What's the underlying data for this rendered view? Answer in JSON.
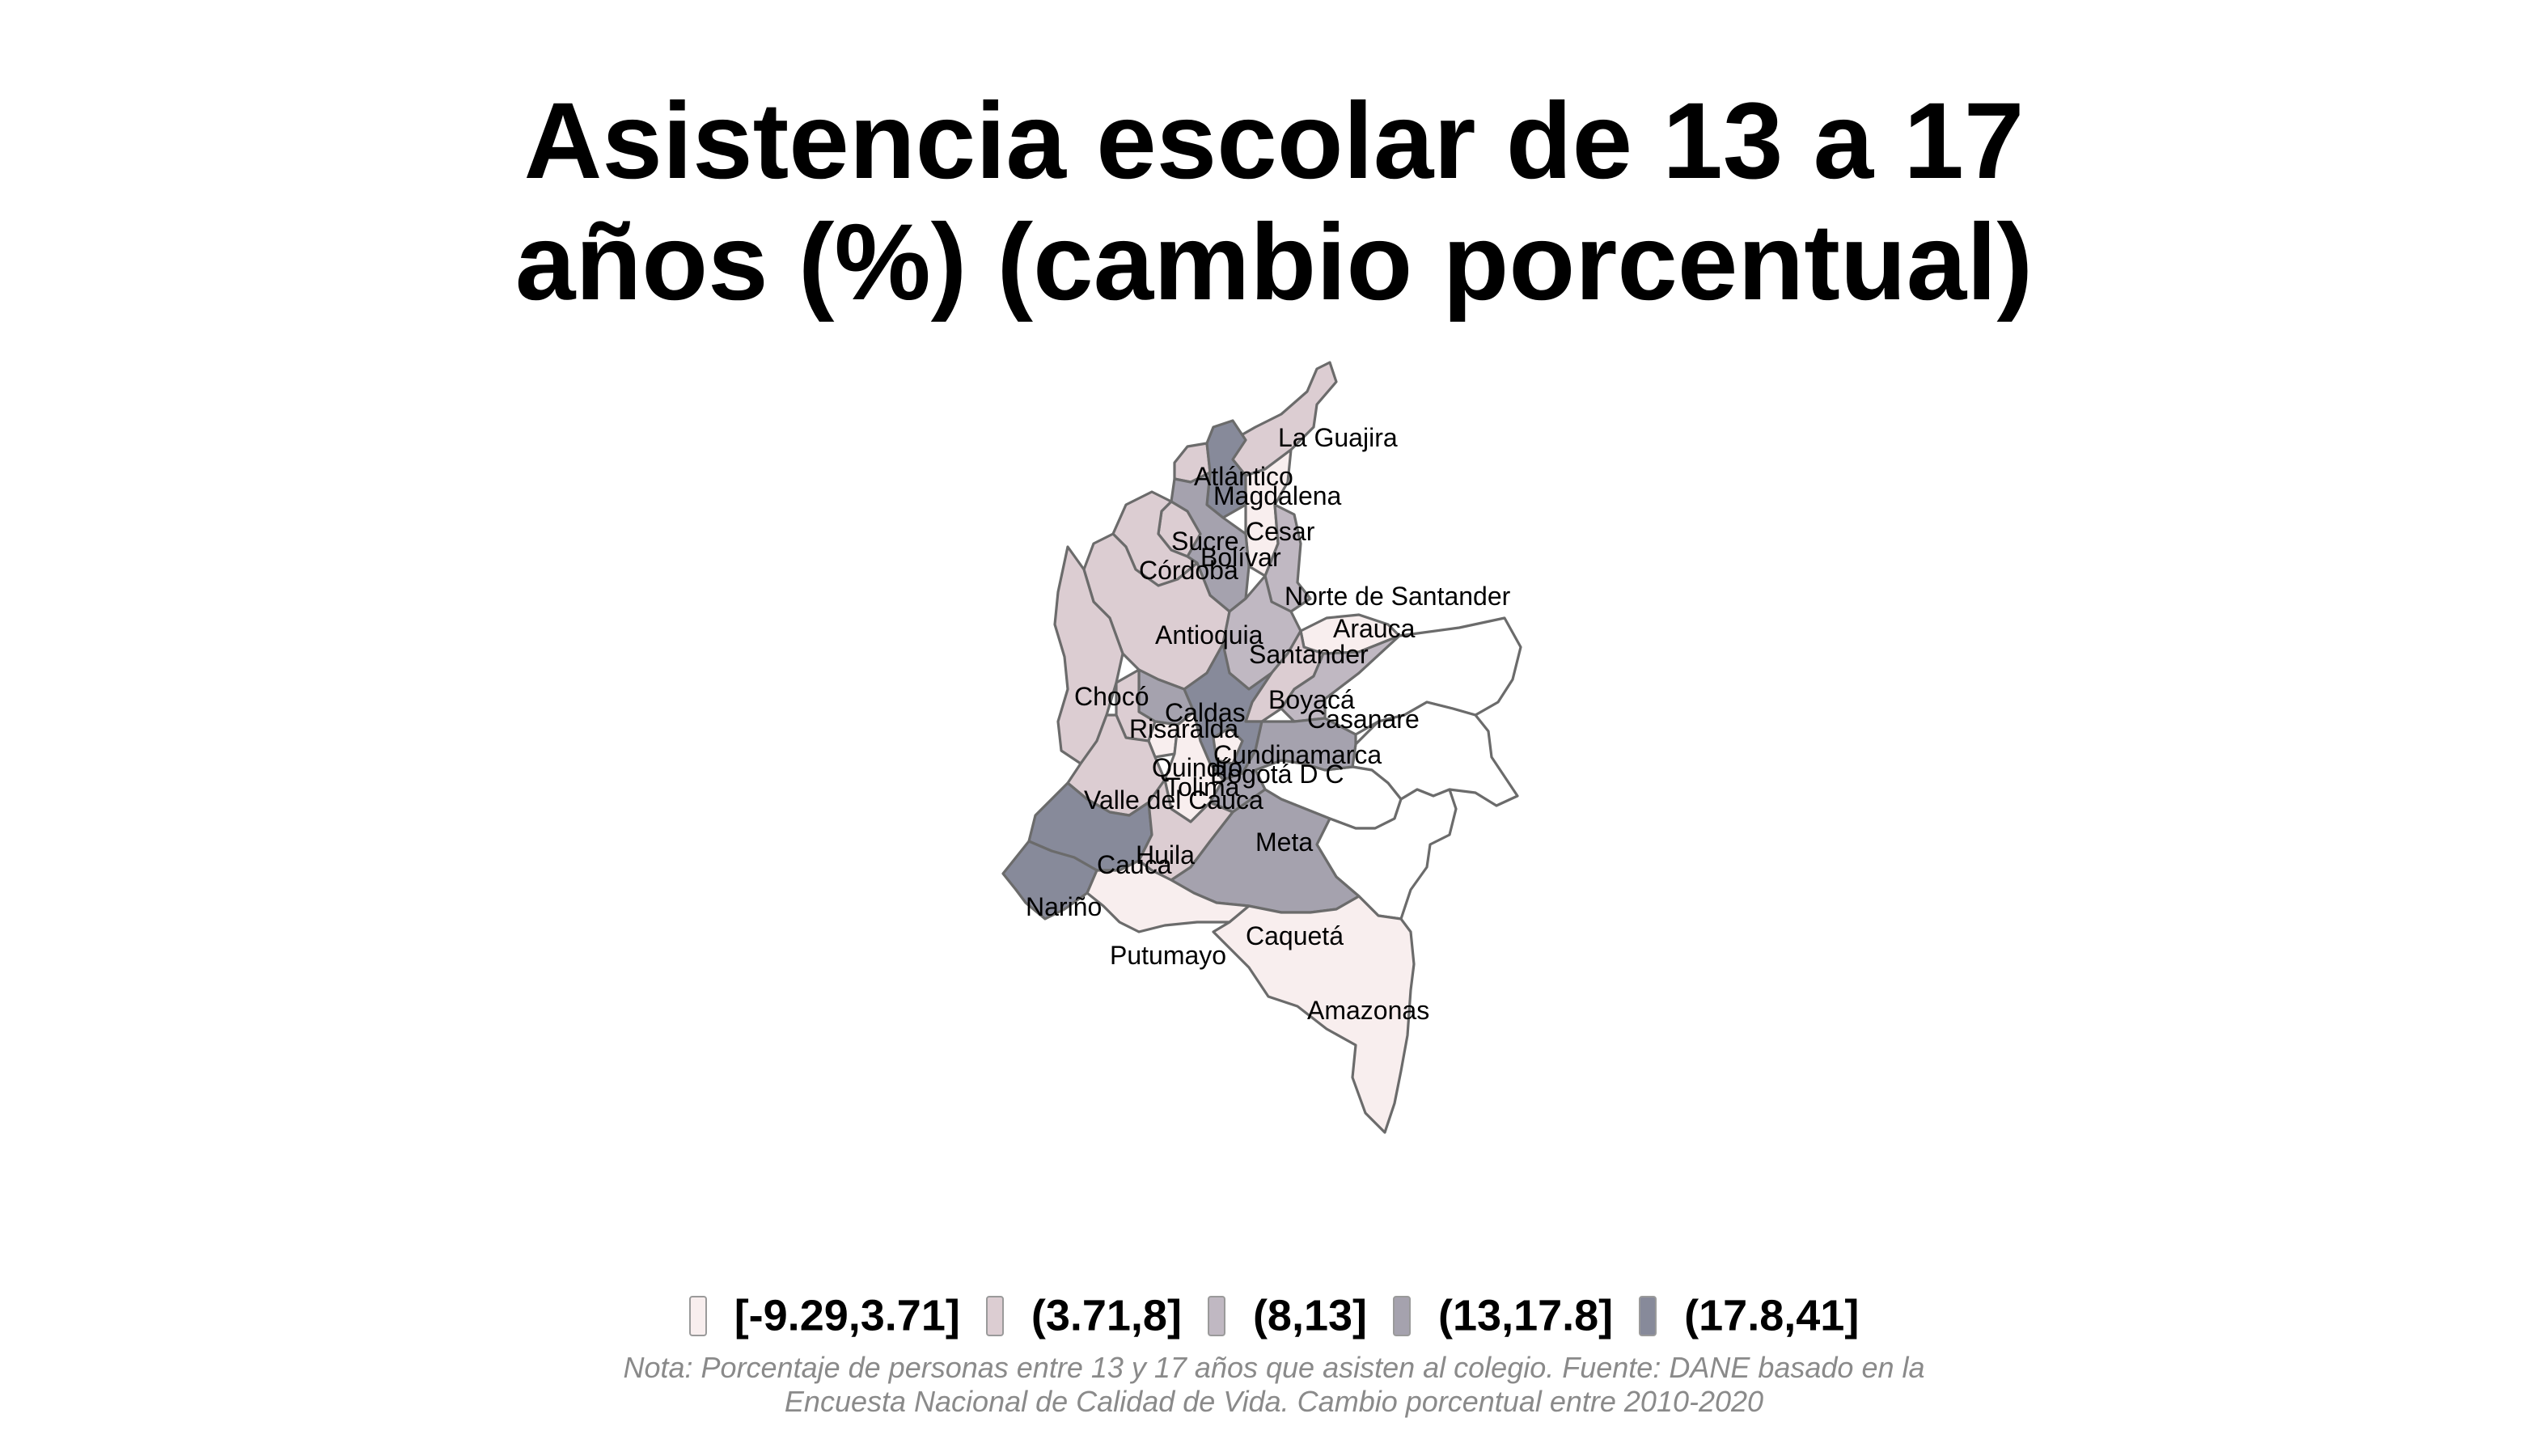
{
  "title": {
    "line1": "Asistencia escolar de 13 a 17",
    "line2": "años (%) (cambio porcentual)"
  },
  "legend": [
    {
      "label": "[-9.29,3.71]",
      "color": "#f8eeee"
    },
    {
      "label": "(3.71,8]",
      "color": "#dccdd2"
    },
    {
      "label": "(8,13]",
      "color": "#c0b8c2"
    },
    {
      "label": "(13,17.8]",
      "color": "#a5a2ae"
    },
    {
      "label": "(17.8,41]",
      "color": "#878a9a"
    }
  ],
  "note": {
    "line1": "Nota: Porcentaje de personas entre 13 y 17 años que asisten al colegio. Fuente: DANE basado en la",
    "line2": "Encuesta Nacional de Calidad de Vida. Cambio porcentual entre 2010-2020"
  },
  "departments": [
    {
      "name": "La Guajira",
      "class": 1
    },
    {
      "name": "Atlántico",
      "class": 1
    },
    {
      "name": "Magdalena",
      "class": 4
    },
    {
      "name": "Cesar",
      "class": 0
    },
    {
      "name": "Sucre",
      "class": 1
    },
    {
      "name": "Bolívar",
      "class": 3
    },
    {
      "name": "Córdoba",
      "class": 1
    },
    {
      "name": "Norte de Santander",
      "class": 2
    },
    {
      "name": "Antioquia",
      "class": 1
    },
    {
      "name": "Santander",
      "class": 2
    },
    {
      "name": "Arauca",
      "class": 0
    },
    {
      "name": "Chocó",
      "class": 1
    },
    {
      "name": "Boyacá",
      "class": 1
    },
    {
      "name": "Casanare",
      "class": 2
    },
    {
      "name": "Caldas",
      "class": 3
    },
    {
      "name": "Risaralda",
      "class": 1
    },
    {
      "name": "Cundinamarca",
      "class": 4
    },
    {
      "name": "Quindío",
      "class": 0
    },
    {
      "name": "Bogotá D C",
      "class": 0
    },
    {
      "name": "Tolima",
      "class": 0
    },
    {
      "name": "Valle del Cauca",
      "class": 1
    },
    {
      "name": "Meta",
      "class": 3
    },
    {
      "name": "Cauca",
      "class": 4
    },
    {
      "name": "Huila",
      "class": 1
    },
    {
      "name": "Nariño",
      "class": 4
    },
    {
      "name": "Caquetá",
      "class": 3
    },
    {
      "name": "Putumayo",
      "class": 0
    },
    {
      "name": "Amazonas",
      "class": 0
    }
  ]
}
